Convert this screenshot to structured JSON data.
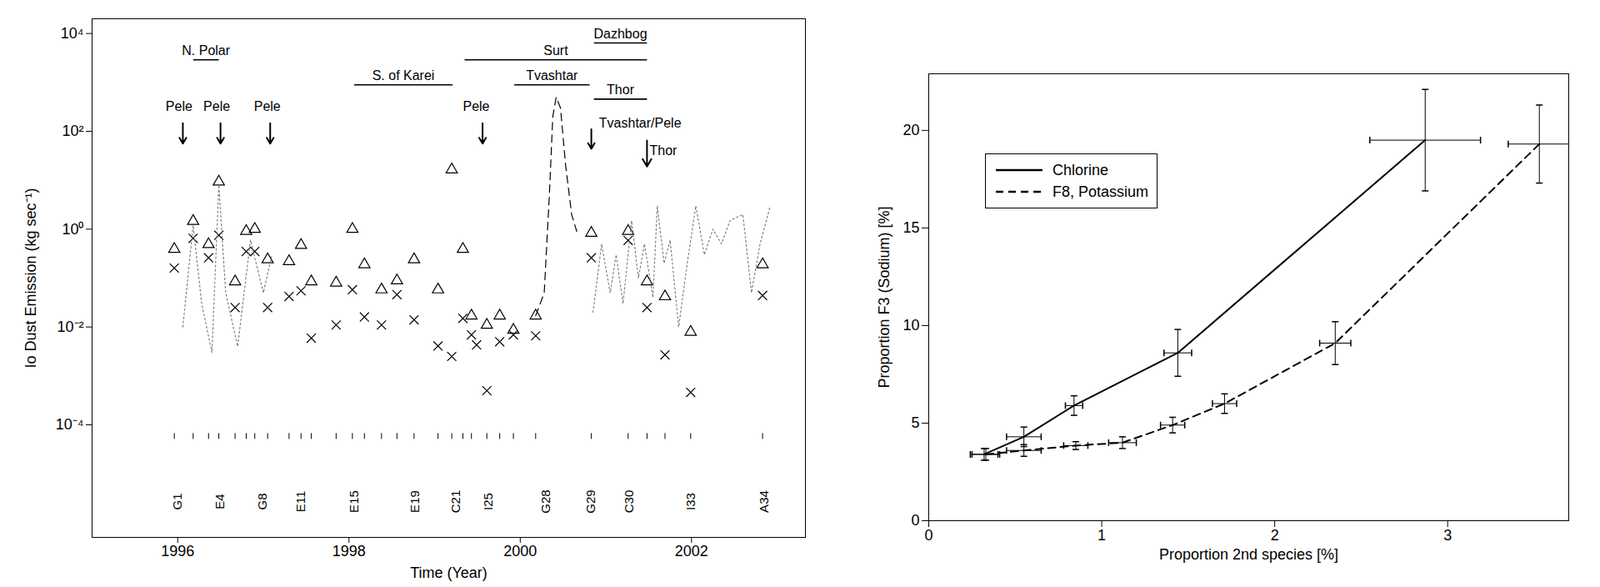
{
  "chart_data": [
    {
      "type": "scatter",
      "x_label": "Time (Year)",
      "y_label": "Io Dust Emission (kg sec⁻¹)",
      "log": "y",
      "xlim": [
        1995,
        2003.33
      ],
      "xticks": [
        1996,
        1998,
        2000,
        2002
      ],
      "ylim": [
        5e-07,
        20000
      ],
      "yticks": [
        {
          "value": 0.0001,
          "label": "10⁻⁴"
        },
        {
          "value": 0.01,
          "label": "10⁻²"
        },
        {
          "value": 1,
          "label": "10⁰"
        },
        {
          "value": 100,
          "label": "10²"
        },
        {
          "value": 10000,
          "label": "10⁴"
        }
      ],
      "series": [
        {
          "type": "scatter",
          "marker": "triangle",
          "color": "#000000",
          "x": [
            1995.96,
            1996.18,
            1996.36,
            1996.48,
            1996.67,
            1996.8,
            1996.9,
            1997.05,
            1997.3,
            1997.44,
            1997.56,
            1997.85,
            1998.04,
            1998.18,
            1998.38,
            1998.56,
            1998.76,
            1999.04,
            1999.2,
            1999.33,
            1999.43,
            1999.61,
            1999.76,
            1999.92,
            2000.18,
            2000.83,
            2001.26,
            2001.48,
            2001.69,
            2001.99,
            2002.83
          ],
          "values": [
            0.39,
            1.46,
            0.49,
            9.3,
            0.085,
            0.91,
            1.0,
            0.24,
            0.22,
            0.47,
            0.085,
            0.08,
            1.0,
            0.19,
            0.058,
            0.089,
            0.24,
            0.058,
            16.5,
            0.39,
            0.017,
            0.011,
            0.017,
            0.0087,
            0.017,
            0.83,
            0.91,
            0.085,
            0.042,
            0.0079,
            0.19
          ]
        },
        {
          "type": "scatter",
          "marker": "cross",
          "color": "#000000",
          "x": [
            1995.96,
            1996.18,
            1996.36,
            1996.48,
            1996.67,
            1996.8,
            1996.9,
            1997.05,
            1997.3,
            1997.44,
            1997.56,
            1997.85,
            1998.04,
            1998.18,
            1998.38,
            1998.56,
            1998.76,
            1999.04,
            1999.2,
            1999.33,
            1999.43,
            1999.49,
            1999.61,
            1999.76,
            1999.92,
            2000.18,
            2000.83,
            2001.26,
            2001.48,
            2001.69,
            2001.99,
            2002.83
          ],
          "values": [
            0.16,
            0.65,
            0.26,
            0.75,
            0.025,
            0.35,
            0.35,
            0.025,
            0.042,
            0.055,
            0.0059,
            0.011,
            0.058,
            0.016,
            0.011,
            0.046,
            0.014,
            0.0041,
            0.0025,
            0.015,
            0.0069,
            0.0043,
            0.0005,
            0.005,
            0.0069,
            0.0066,
            0.26,
            0.59,
            0.025,
            0.0027,
            0.00046,
            0.044
          ]
        },
        {
          "type": "line",
          "line_style": "dashed",
          "color": "#000000",
          "x": [
            2000.18,
            2000.28,
            2000.34,
            2000.38,
            2000.42,
            2000.47,
            2000.53,
            2000.6,
            2000.66
          ],
          "values": [
            0.017,
            0.05,
            5,
            200,
            500,
            300,
            20,
            2,
            0.9
          ]
        },
        {
          "type": "line",
          "line_style": "dotted",
          "color": "#808080",
          "x": [
            1996.06,
            1996.18,
            1996.28,
            1996.4,
            1996.48,
            1996.56,
            1996.7,
            1996.85,
            1997.0,
            1997.1,
            null,
            2000.85,
            2000.95,
            2001.05,
            2001.12,
            2001.2,
            2001.3,
            2001.38,
            2001.45,
            2001.55,
            2001.6,
            2001.68,
            2001.75,
            2001.85,
            2001.95,
            2002.05,
            2002.15,
            2002.25,
            2002.35,
            2002.45,
            2002.6,
            2002.7,
            2002.8,
            2002.92
          ],
          "values": [
            0.01,
            1.2,
            0.03,
            0.003,
            8,
            0.05,
            0.004,
            0.6,
            0.05,
            0.3,
            null,
            0.02,
            0.5,
            0.05,
            0.3,
            0.03,
            1.5,
            0.1,
            0.5,
            0.04,
            3,
            0.2,
            0.6,
            0.01,
            0.2,
            3,
            0.3,
            1,
            0.5,
            1.5,
            2,
            0.05,
            0.5,
            3
          ]
        }
      ],
      "periods": [
        {
          "label": "N. Polar",
          "start": 1996.18,
          "end": 1996.48,
          "y": 2900
        },
        {
          "label": "S. of Karei",
          "start": 1998.06,
          "end": 1999.21,
          "y": 890
        },
        {
          "label": "Surt",
          "start": 1999.35,
          "end": 2001.48,
          "y": 2900
        },
        {
          "label": "Dazhbog",
          "start": 2000.86,
          "end": 2001.48,
          "y": 6400
        },
        {
          "label": "Tvashtar",
          "start": 1999.93,
          "end": 2000.81,
          "y": 890
        },
        {
          "label": "Thor",
          "start": 2000.86,
          "end": 2001.48,
          "y": 455
        }
      ],
      "events": [
        {
          "label": "Pele",
          "x": 1996.06,
          "y_from": 146,
          "y_to": 56,
          "label_x": 1995.86,
          "label_y": 320
        },
        {
          "label": "Pele",
          "x": 1996.5,
          "y_from": 146,
          "y_to": 56,
          "label_x": 1996.3,
          "label_y": 320
        },
        {
          "label": "Pele",
          "x": 1997.08,
          "y_from": 146,
          "y_to": 56,
          "label_x": 1996.89,
          "label_y": 320
        },
        {
          "label": "Pele",
          "x": 1999.56,
          "y_from": 146,
          "y_to": 56,
          "label_x": 1999.33,
          "label_y": 320
        },
        {
          "label": "Tvashtar/Pele",
          "x": 2000.83,
          "y_from": 110,
          "y_to": 44,
          "label_x": 2000.92,
          "label_y": 146
        },
        {
          "label": "Thor",
          "x": 2001.48,
          "y_from": 65,
          "y_to": 19,
          "label_x": 2001.51,
          "label_y": 40
        }
      ],
      "orbits": {
        "labels": [
          "G1",
          "E4",
          "G8",
          "E11",
          "E15",
          "E19",
          "C21",
          "I25",
          "G28",
          "G29",
          "C30",
          "I33",
          "A34"
        ],
        "x": [
          1996.0,
          1996.5,
          1996.99,
          1997.44,
          1998.06,
          1998.77,
          1999.25,
          1999.63,
          2000.3,
          2000.83,
          2001.27,
          2001.99,
          2002.85
        ],
        "y": 2.7e-06,
        "tick_y": 5.9e-05
      }
    },
    {
      "type": "line",
      "x_label": "Proportion 2nd species [%]",
      "y_label": "Proportion F3 (Sodium) [%]",
      "xlim": [
        0,
        3.7
      ],
      "xticks": [
        0,
        1,
        2,
        3
      ],
      "ylim": [
        0,
        22.9
      ],
      "yticks": [
        0,
        5,
        10,
        15,
        20
      ],
      "legend": "top-left",
      "series": [
        {
          "name": "Chlorine",
          "line_style": "solid",
          "color": "#000000",
          "x": [
            0.32,
            0.55,
            0.84,
            1.44,
            2.87
          ],
          "values": [
            3.4,
            4.3,
            5.9,
            8.6,
            19.5
          ],
          "x_error": [
            0.08,
            0.1,
            0.05,
            0.08,
            0.32
          ],
          "y_error": [
            0.3,
            0.5,
            0.5,
            1.2,
            2.6
          ]
        },
        {
          "name": "F8, Potassium",
          "line_style": "dashed",
          "color": "#000000",
          "x": [
            0.33,
            0.55,
            0.85,
            1.12,
            1.41,
            1.71,
            2.35,
            3.53
          ],
          "values": [
            3.4,
            3.6,
            3.85,
            4.0,
            4.9,
            6.0,
            9.1,
            19.3
          ],
          "x_error": [
            0.08,
            0.1,
            0.07,
            0.08,
            0.07,
            0.07,
            0.09,
            0.18
          ],
          "y_error": [
            0.3,
            0.3,
            0.2,
            0.3,
            0.4,
            0.5,
            1.1,
            2.0
          ]
        }
      ]
    }
  ]
}
